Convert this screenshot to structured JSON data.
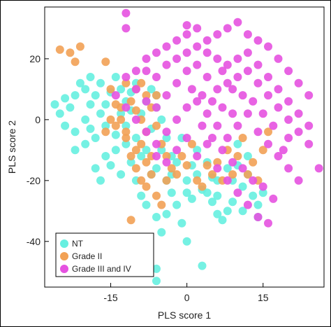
{
  "chart_data": {
    "type": "scatter",
    "title": "",
    "xlabel": "PLS score 1",
    "ylabel": "PLS score 2",
    "xlim": [
      -28,
      27
    ],
    "ylim": [
      -55,
      37
    ],
    "xticks": [
      -15,
      0,
      15
    ],
    "yticks": [
      -40,
      -20,
      0,
      20
    ],
    "grid": false,
    "legend_position": "bottom-left",
    "series": [
      {
        "name": "NT",
        "color": "#66efe0",
        "points": [
          [
            -26,
            5
          ],
          [
            -25,
            2
          ],
          [
            -24,
            -2
          ],
          [
            -23,
            4
          ],
          [
            -22,
            8
          ],
          [
            -21,
            12
          ],
          [
            -22,
            -4
          ],
          [
            -20,
            10
          ],
          [
            -19,
            14
          ],
          [
            -18,
            8
          ],
          [
            -20,
            0
          ],
          [
            -19,
            -3
          ],
          [
            -18,
            -6
          ],
          [
            -17,
            2
          ],
          [
            -16,
            5
          ],
          [
            -15,
            9
          ],
          [
            -16,
            -2
          ],
          [
            -14,
            -5
          ],
          [
            -13,
            2
          ],
          [
            -12,
            6
          ],
          [
            -11,
            9
          ],
          [
            -10,
            12
          ],
          [
            -12,
            -8
          ],
          [
            -14,
            -10
          ],
          [
            -16,
            -12
          ],
          [
            -18,
            -16
          ],
          [
            -15,
            -15
          ],
          [
            -13,
            -18
          ],
          [
            -11,
            -14
          ],
          [
            -10,
            -20
          ],
          [
            -9,
            -25
          ],
          [
            -8,
            -28
          ],
          [
            -10,
            -6
          ],
          [
            -9,
            2
          ],
          [
            -8,
            6
          ],
          [
            -7,
            10
          ],
          [
            -6,
            4
          ],
          [
            -7,
            -3
          ],
          [
            -5,
            -10
          ],
          [
            -6,
            -16
          ],
          [
            -4,
            -20
          ],
          [
            -3,
            -24
          ],
          [
            -2,
            -28
          ],
          [
            -1,
            -34
          ],
          [
            0,
            -20
          ],
          [
            1,
            -15
          ],
          [
            2,
            -10
          ],
          [
            3,
            -23
          ],
          [
            4,
            -24
          ],
          [
            5,
            -27
          ],
          [
            6,
            -31
          ],
          [
            7,
            -33
          ],
          [
            8,
            -30
          ],
          [
            9,
            -20
          ],
          [
            10,
            -15
          ],
          [
            11,
            -22
          ],
          [
            12,
            -18
          ],
          [
            13,
            -25
          ],
          [
            14,
            -28
          ],
          [
            15,
            -24
          ],
          [
            -5,
            -37
          ],
          [
            -4,
            -31
          ],
          [
            -6,
            -32
          ],
          [
            3,
            -48
          ],
          [
            0,
            -40
          ],
          [
            -6,
            -49
          ],
          [
            -6,
            -53
          ],
          [
            -22,
            -10
          ],
          [
            -24,
            7
          ],
          [
            -17,
            -20
          ],
          [
            -8,
            -10
          ],
          [
            -5,
            0
          ],
          [
            -3,
            -12
          ],
          [
            -1,
            -6
          ],
          [
            2,
            -18
          ],
          [
            4,
            -14
          ],
          [
            6,
            -20
          ],
          [
            8,
            -16
          ],
          [
            10,
            -8
          ],
          [
            12,
            -12
          ],
          [
            -13,
            10
          ],
          [
            -11,
            3
          ],
          [
            -9,
            -12
          ],
          [
            -7,
            -18
          ],
          [
            -2,
            -14
          ],
          [
            1,
            -26
          ],
          [
            6,
            -25
          ],
          [
            9,
            -27
          ],
          [
            11,
            -30
          ],
          [
            -20,
            -8
          ],
          [
            -17,
            12
          ],
          [
            -12,
            -2
          ],
          [
            -6,
            8
          ],
          [
            -4,
            -6
          ],
          [
            -19,
            5
          ],
          [
            -14,
            14
          ],
          [
            -3,
            -18
          ],
          [
            0,
            -24
          ],
          [
            5,
            -19
          ],
          [
            14,
            -32
          ]
        ]
      },
      {
        "name": "Grade II",
        "color": "#f2a155",
        "points": [
          [
            -25,
            23
          ],
          [
            -23,
            22
          ],
          [
            -21,
            24
          ],
          [
            -22,
            19
          ],
          [
            -16,
            19
          ],
          [
            -15,
            10
          ],
          [
            -14,
            5
          ],
          [
            -13,
            0
          ],
          [
            -12,
            -4
          ],
          [
            -14,
            -2
          ],
          [
            -11,
            6
          ],
          [
            -10,
            3
          ],
          [
            -9,
            0
          ],
          [
            -8,
            -4
          ],
          [
            -9,
            -8
          ],
          [
            -10,
            -10
          ],
          [
            -8,
            -14
          ],
          [
            -7,
            -18
          ],
          [
            -8,
            -22
          ],
          [
            -6,
            -25
          ],
          [
            -9,
            -20
          ],
          [
            -10,
            -16
          ],
          [
            -11,
            -12
          ],
          [
            -12,
            -6
          ],
          [
            -13,
            4
          ],
          [
            -10,
            10
          ],
          [
            -8,
            8
          ],
          [
            -7,
            4
          ],
          [
            -6,
            -2
          ],
          [
            -5,
            -8
          ],
          [
            -11,
            -33
          ],
          [
            -5,
            -28
          ],
          [
            -4,
            -12
          ],
          [
            -3,
            -16
          ],
          [
            -2,
            -18
          ],
          [
            0,
            -15
          ],
          [
            2,
            -20
          ],
          [
            3,
            -22
          ],
          [
            5,
            -18
          ],
          [
            6,
            -14
          ],
          [
            7,
            -20
          ],
          [
            8,
            -10
          ],
          [
            10,
            -12
          ],
          [
            11,
            -6
          ],
          [
            12,
            -18
          ],
          [
            14,
            -20
          ],
          [
            15,
            -10
          ],
          [
            16,
            -4
          ],
          [
            -12,
            12
          ],
          [
            -9,
            12
          ],
          [
            -15,
            0
          ],
          [
            -16,
            -4
          ],
          [
            -7,
            -12
          ],
          [
            -4,
            -20
          ],
          [
            -1,
            -12
          ],
          [
            1,
            -8
          ],
          [
            4,
            -15
          ],
          [
            9,
            -18
          ],
          [
            13,
            -14
          ],
          [
            -6,
            8
          ]
        ]
      },
      {
        "name": "Grade III and IV",
        "color": "#e552e0",
        "points": [
          [
            -12,
            35
          ],
          [
            -12,
            30
          ],
          [
            0,
            31
          ],
          [
            -8,
            16
          ],
          [
            -6,
            14
          ],
          [
            -4,
            18
          ],
          [
            -2,
            20
          ],
          [
            0,
            22
          ],
          [
            2,
            24
          ],
          [
            4,
            26
          ],
          [
            6,
            28
          ],
          [
            8,
            30
          ],
          [
            10,
            32
          ],
          [
            12,
            28
          ],
          [
            14,
            26
          ],
          [
            16,
            24
          ],
          [
            18,
            20
          ],
          [
            20,
            16
          ],
          [
            22,
            12
          ],
          [
            24,
            8
          ],
          [
            -10,
            10
          ],
          [
            -8,
            6
          ],
          [
            -6,
            4
          ],
          [
            -4,
            8
          ],
          [
            -2,
            12
          ],
          [
            0,
            16
          ],
          [
            2,
            18
          ],
          [
            4,
            14
          ],
          [
            6,
            10
          ],
          [
            8,
            12
          ],
          [
            10,
            14
          ],
          [
            12,
            16
          ],
          [
            14,
            12
          ],
          [
            16,
            8
          ],
          [
            18,
            4
          ],
          [
            20,
            0
          ],
          [
            22,
            -4
          ],
          [
            24,
            -8
          ],
          [
            26,
            -16
          ],
          [
            -14,
            8
          ],
          [
            -12,
            4
          ],
          [
            -10,
            0
          ],
          [
            -8,
            -4
          ],
          [
            -6,
            -8
          ],
          [
            -4,
            -4
          ],
          [
            -2,
            0
          ],
          [
            0,
            4
          ],
          [
            2,
            6
          ],
          [
            4,
            2
          ],
          [
            6,
            -2
          ],
          [
            8,
            -6
          ],
          [
            10,
            -2
          ],
          [
            12,
            2
          ],
          [
            14,
            -4
          ],
          [
            16,
            -8
          ],
          [
            18,
            -12
          ],
          [
            20,
            -16
          ],
          [
            22,
            -20
          ],
          [
            -6,
            -12
          ],
          [
            -4,
            -14
          ],
          [
            -2,
            -10
          ],
          [
            0,
            -6
          ],
          [
            2,
            -12
          ],
          [
            4,
            -8
          ],
          [
            6,
            -16
          ],
          [
            8,
            -20
          ],
          [
            10,
            -24
          ],
          [
            12,
            -28
          ],
          [
            14,
            -32
          ],
          [
            16,
            -34
          ],
          [
            -12,
            14
          ],
          [
            -10,
            16
          ],
          [
            -8,
            20
          ],
          [
            -6,
            22
          ],
          [
            -4,
            24
          ],
          [
            -2,
            26
          ],
          [
            0,
            28
          ],
          [
            2,
            30
          ],
          [
            4,
            22
          ],
          [
            6,
            20
          ],
          [
            8,
            18
          ],
          [
            10,
            20
          ],
          [
            12,
            22
          ],
          [
            14,
            18
          ],
          [
            16,
            14
          ],
          [
            18,
            10
          ],
          [
            20,
            6
          ],
          [
            22,
            2
          ],
          [
            24,
            -2
          ],
          [
            20,
            -6
          ],
          [
            1,
            10
          ],
          [
            3,
            8
          ],
          [
            5,
            6
          ],
          [
            7,
            4
          ],
          [
            9,
            2
          ],
          [
            11,
            8
          ],
          [
            13,
            6
          ],
          [
            15,
            2
          ],
          [
            17,
            -2
          ],
          [
            19,
            -10
          ],
          [
            3,
            -2
          ],
          [
            5,
            -6
          ],
          [
            7,
            -10
          ],
          [
            9,
            -14
          ],
          [
            11,
            -16
          ],
          [
            13,
            -20
          ],
          [
            15,
            -22
          ],
          [
            17,
            -26
          ],
          [
            9,
            10
          ],
          [
            7,
            16
          ]
        ]
      }
    ]
  },
  "legend": {
    "items": [
      {
        "label": "NT",
        "color": "#66efe0"
      },
      {
        "label": "Grade II",
        "color": "#f2a155"
      },
      {
        "label": "Grade III and IV",
        "color": "#e552e0"
      }
    ]
  }
}
